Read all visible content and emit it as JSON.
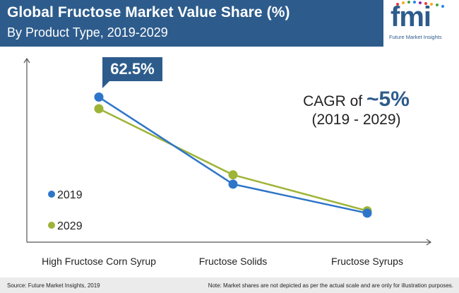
{
  "header": {
    "title": "Global Fructose Market Value Share (%)",
    "subtitle": "By Product Type, 2019-2029",
    "logo_text": "fmi",
    "logo_sub": "Future Market Insights"
  },
  "callout": {
    "label": "62.5%"
  },
  "cagr": {
    "prefix": "CAGR of ",
    "value": "~5%",
    "range": "(2019 - 2029)"
  },
  "footer": {
    "source": "Source: Future Market Insights, 2019",
    "note": "Note: Market shares are not depicted as per the actual scale and are only for illustration purposes."
  },
  "colors": {
    "series_2019": "#2e75c9",
    "series_2029": "#9eb437",
    "brand": "#2d5c8c"
  },
  "chart_data": {
    "type": "line",
    "categories": [
      "High Fructose Corn Syrup",
      "Fructose Solids",
      "Fructose Syrups"
    ],
    "series": [
      {
        "name": "2019",
        "values": [
          62.5,
          25.0,
          12.5
        ]
      },
      {
        "name": "2029",
        "values": [
          57.5,
          29.0,
          13.5
        ]
      }
    ],
    "ylim": [
      0,
      80
    ],
    "grid": false,
    "legend": "bottom-left",
    "data_label": "62.5%"
  }
}
